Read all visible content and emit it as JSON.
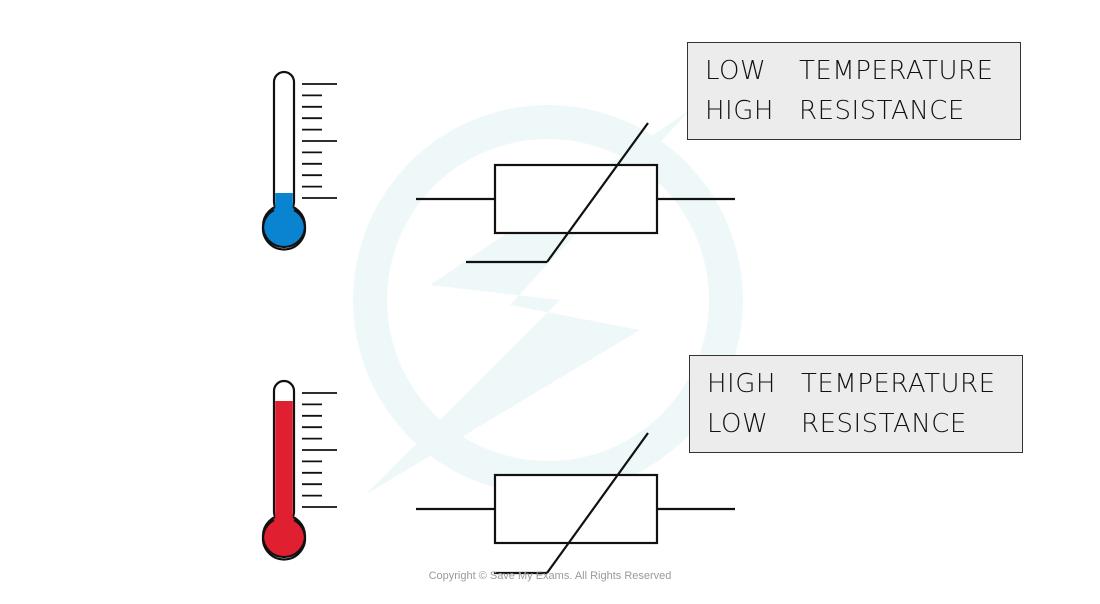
{
  "panels": [
    {
      "temperature_word": "LOW",
      "temperature_label": "TEMPERATURE",
      "resistance_word": "HIGH",
      "resistance_label": "RESISTANCE",
      "thermometer_fill_color": "#0a84d0",
      "thermometer_fill_fraction": 0.05
    },
    {
      "temperature_word": "HIGH",
      "temperature_label": "TEMPERATURE",
      "resistance_word": "LOW",
      "resistance_label": "RESISTANCE",
      "thermometer_fill_color": "#e02030",
      "thermometer_fill_fraction": 0.92
    }
  ],
  "footer": {
    "copyright": "Copyright © Save My Exams. All Rights Reserved"
  },
  "colors": {
    "outline": "#111111",
    "label_background": "#ececec",
    "watermark": "#e9f6f6"
  }
}
